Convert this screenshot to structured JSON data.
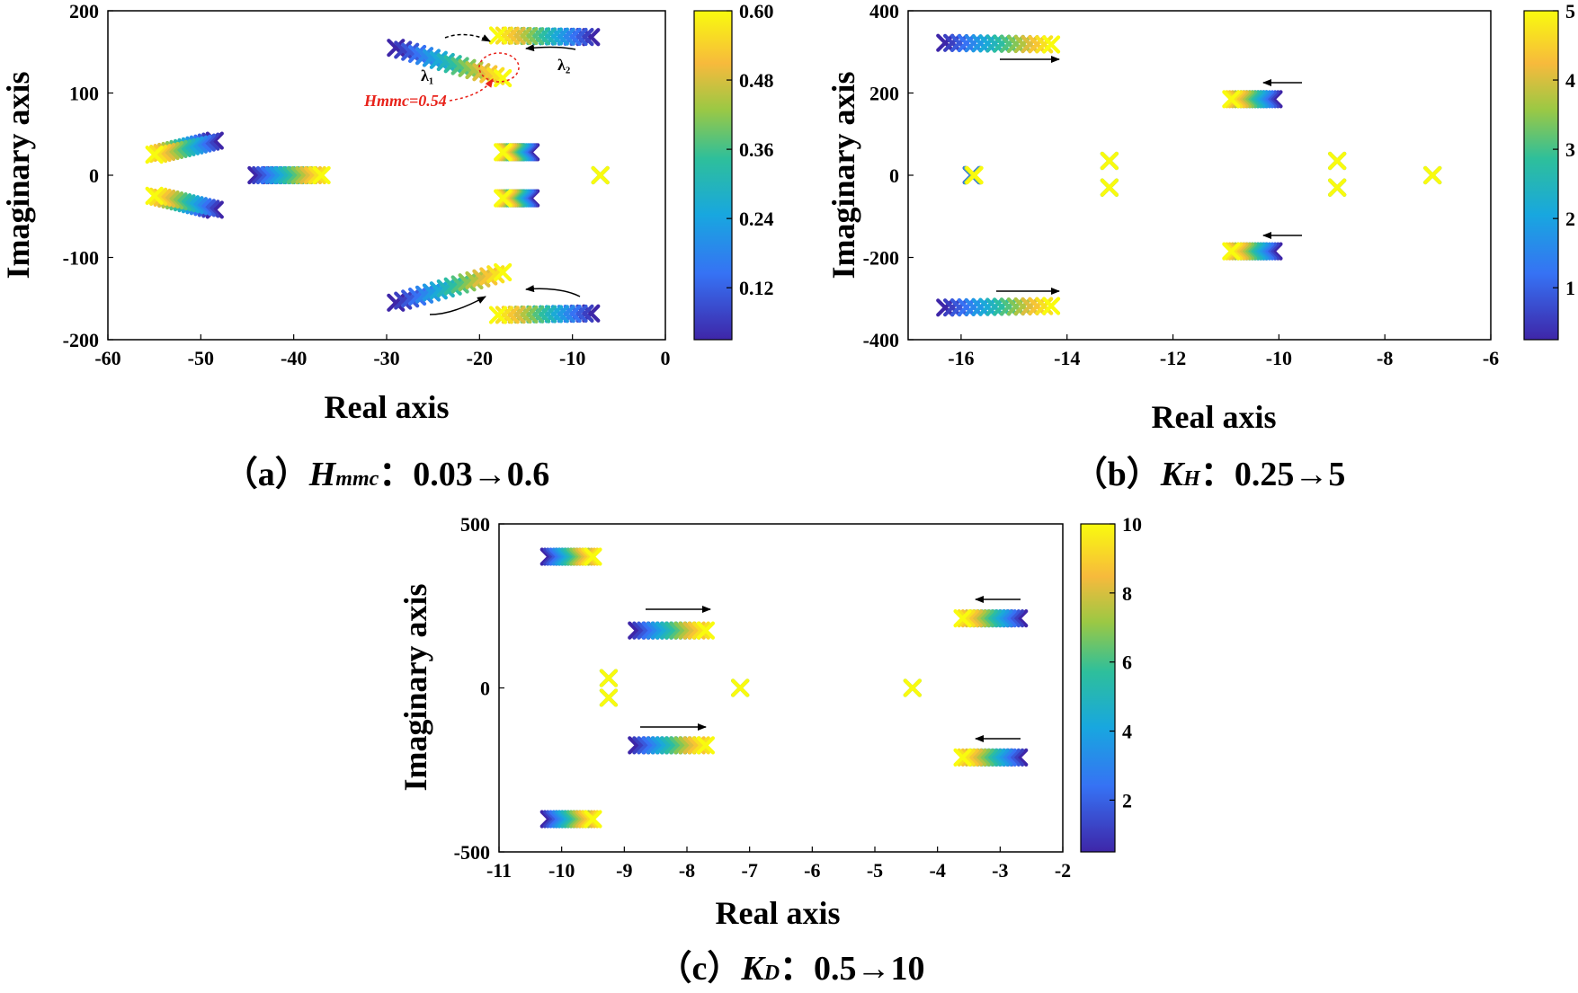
{
  "chart_data": [
    {
      "id": "a",
      "type": "scatter",
      "title": "",
      "xlabel": "Real axis",
      "ylabel": "Imaginary axis",
      "xlim": [
        -60,
        0
      ],
      "ylim": [
        -200,
        200
      ],
      "xticks": [
        "-60",
        "-50",
        "-40",
        "-30",
        "-20",
        "-10",
        "0"
      ],
      "yticks": [
        "200",
        "100",
        "0",
        "-100",
        "-200"
      ],
      "colorbar": {
        "min": 0.03,
        "max": 0.6,
        "ticks": [
          "0.60",
          "0.48",
          "0.36",
          "0.24",
          "0.12"
        ]
      },
      "caption": {
        "prefix": "（a）",
        "param": "H",
        "sub": "mmc",
        "range": "：0.03→0.6"
      },
      "annotations": [
        "λ₁",
        "λ₂",
        "Hmmc=0.54"
      ],
      "series": [
        {
          "x": [
            -48.5,
            -55.0
          ],
          "y": [
            42,
            25
          ]
        },
        {
          "x": [
            -48.5,
            -55.0
          ],
          "y": [
            -42,
            -25
          ]
        },
        {
          "x": [
            -44.0,
            -37.0
          ],
          "y": [
            0,
            0
          ]
        },
        {
          "x": [
            -29.0,
            -17.5
          ],
          "y": [
            155,
            118
          ]
        },
        {
          "x": [
            -29.0,
            -17.5
          ],
          "y": [
            -155,
            -118
          ]
        },
        {
          "x": [
            -8.0,
            -18.0
          ],
          "y": [
            168,
            170
          ]
        },
        {
          "x": [
            -8.0,
            -18.0
          ],
          "y": [
            -168,
            -170
          ]
        },
        {
          "x": [
            -14.5,
            -17.5
          ],
          "y": [
            28,
            28
          ]
        },
        {
          "x": [
            -14.5,
            -17.5
          ],
          "y": [
            -28,
            -28
          ]
        },
        {
          "x": [
            -7.0,
            -7.0
          ],
          "y": [
            0,
            0
          ]
        }
      ]
    },
    {
      "id": "b",
      "type": "scatter",
      "title": "",
      "xlabel": "Real axis",
      "ylabel": "Imaginary axis",
      "xlim": [
        -17,
        -6
      ],
      "ylim": [
        -400,
        400
      ],
      "xticks": [
        "-16",
        "-14",
        "-12",
        "-10",
        "-8",
        "-6"
      ],
      "yticks": [
        "400",
        "200",
        "0",
        "-200",
        "-400"
      ],
      "colorbar": {
        "min": 0.25,
        "max": 5,
        "ticks": [
          "5",
          "4",
          "3",
          "2",
          "1"
        ]
      },
      "caption": {
        "prefix": "（b）",
        "param": "K",
        "sub": "H",
        "range": "：0.25→5"
      },
      "series": [
        {
          "x": [
            -16.3,
            -14.3
          ],
          "y": [
            322,
            318
          ]
        },
        {
          "x": [
            -16.3,
            -14.3
          ],
          "y": [
            -322,
            -318
          ]
        },
        {
          "x": [
            -10.1,
            -10.9
          ],
          "y": [
            185,
            185
          ]
        },
        {
          "x": [
            -10.1,
            -10.9
          ],
          "y": [
            -185,
            -185
          ]
        },
        {
          "x": [
            -15.8,
            -15.75
          ],
          "y": [
            0,
            0
          ]
        },
        {
          "x": [
            -13.2,
            -13.2
          ],
          "y": [
            35,
            35
          ]
        },
        {
          "x": [
            -13.2,
            -13.2
          ],
          "y": [
            -30,
            -30
          ]
        },
        {
          "x": [
            -8.9,
            -8.9
          ],
          "y": [
            35,
            35
          ]
        },
        {
          "x": [
            -8.9,
            -8.9
          ],
          "y": [
            -30,
            -30
          ]
        },
        {
          "x": [
            -7.1,
            -7.1
          ],
          "y": [
            0,
            0
          ]
        }
      ]
    },
    {
      "id": "c",
      "type": "scatter",
      "title": "",
      "xlabel": "Real axis",
      "ylabel": "Imaginary axis",
      "xlim": [
        -11,
        -2
      ],
      "ylim": [
        -500,
        500
      ],
      "xticks": [
        "-11",
        "-10",
        "-9",
        "-8",
        "-7",
        "-6",
        "-5",
        "-4",
        "-3",
        "-2"
      ],
      "yticks": [
        "500",
        "0",
        "-500"
      ],
      "colorbar": {
        "min": 0.5,
        "max": 10,
        "ticks": [
          "10",
          "8",
          "6",
          "4",
          "2"
        ]
      },
      "caption": {
        "prefix": "（c）",
        "param": "K",
        "sub": "D",
        "range": "：0.5→10"
      },
      "series": [
        {
          "x": [
            -10.2,
            -9.5
          ],
          "y": [
            400,
            400
          ]
        },
        {
          "x": [
            -10.2,
            -9.5
          ],
          "y": [
            -400,
            -400
          ]
        },
        {
          "x": [
            -8.8,
            -7.7
          ],
          "y": [
            175,
            175
          ]
        },
        {
          "x": [
            -8.8,
            -7.7
          ],
          "y": [
            -175,
            -175
          ]
        },
        {
          "x": [
            -2.7,
            -3.6
          ],
          "y": [
            212,
            212
          ]
        },
        {
          "x": [
            -2.7,
            -3.6
          ],
          "y": [
            -212,
            -212
          ]
        },
        {
          "x": [
            -9.25,
            -9.25
          ],
          "y": [
            30,
            30
          ]
        },
        {
          "x": [
            -9.25,
            -9.25
          ],
          "y": [
            -30,
            -30
          ]
        },
        {
          "x": [
            -7.15,
            -7.15
          ],
          "y": [
            0,
            0
          ]
        },
        {
          "x": [
            -4.4,
            -4.4
          ],
          "y": [
            0,
            0
          ]
        }
      ]
    }
  ]
}
